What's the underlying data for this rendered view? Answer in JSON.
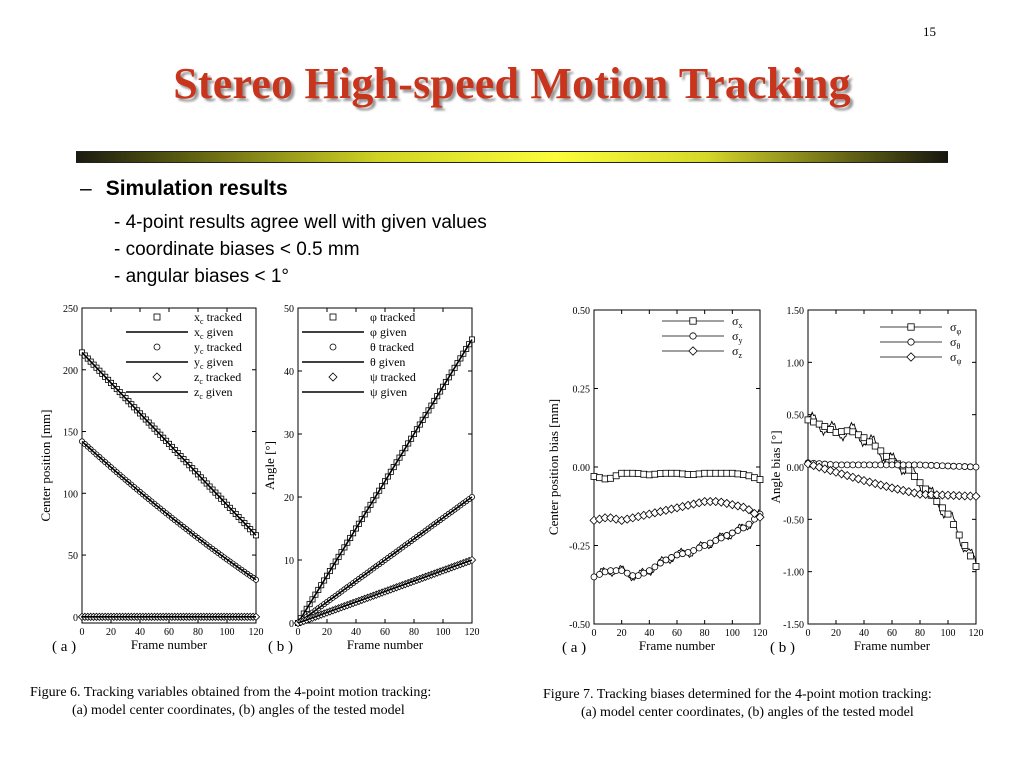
{
  "slide": {
    "page_number": "15",
    "title": "Stereo High-speed Motion Tracking",
    "bullet_dash": "–",
    "bullet": "Simulation results",
    "sub_points": [
      "- 4-point results agree well with given values",
      "- coordinate biases < 0.5 mm",
      "- angular biases < 1°"
    ],
    "figure6_caption": [
      "Figure 6.    Tracking variables obtained from the 4-point motion tracking:",
      "(a) model center coordinates, (b) angles of the tested model"
    ],
    "figure7_caption": [
      "Figure 7.    Tracking biases determined for the 4-point motion tracking:",
      "(a) model center coordinates, (b) angles of the tested model"
    ]
  },
  "chart_data": [
    {
      "id": "fig6a",
      "type": "line",
      "panel_label": "( a )",
      "xlabel": "Frame number",
      "ylabel": "Center position [mm]",
      "xlim": [
        0,
        120
      ],
      "ylim": [
        -5,
        250
      ],
      "xticks": [
        "0",
        "20",
        "40",
        "60",
        "80",
        "100",
        "120"
      ],
      "yticks": [
        "0",
        "50",
        "100",
        "150",
        "200",
        "250"
      ],
      "grid": false,
      "legend": "top-right",
      "series": [
        {
          "name": "xc tracked",
          "label": "x",
          "sub": "c",
          "suffix": " tracked",
          "marker": "square",
          "start": 214,
          "end": 66,
          "curve": 0
        },
        {
          "name": "xc given",
          "label": "x",
          "sub": "c",
          "suffix": " given",
          "marker": "line",
          "start": 214,
          "end": 66,
          "curve": 0
        },
        {
          "name": "yc tracked",
          "label": "y",
          "sub": "c",
          "suffix": " tracked",
          "marker": "circle",
          "start": 142,
          "end": 30,
          "curve": -4
        },
        {
          "name": "yc given",
          "label": "y",
          "sub": "c",
          "suffix": " given",
          "marker": "line",
          "start": 142,
          "end": 30,
          "curve": -4
        },
        {
          "name": "zc tracked",
          "label": "z",
          "sub": "c",
          "suffix": " tracked",
          "marker": "diamond",
          "start": 0,
          "end": 0,
          "curve": 0
        },
        {
          "name": "zc given",
          "label": "z",
          "sub": "c",
          "suffix": " given",
          "marker": "line",
          "start": 0,
          "end": 0,
          "curve": 0
        }
      ]
    },
    {
      "id": "fig6b",
      "type": "line",
      "panel_label": "( b )",
      "xlabel": "Frame number",
      "ylabel": "Angle [°]",
      "xlim": [
        0,
        120
      ],
      "ylim": [
        0,
        50
      ],
      "xticks": [
        "0",
        "20",
        "40",
        "60",
        "80",
        "100",
        "120"
      ],
      "yticks": [
        "0",
        "10",
        "20",
        "30",
        "40",
        "50"
      ],
      "grid": false,
      "legend": "top-left",
      "series": [
        {
          "name": "φ tracked",
          "label": "φ",
          "sub": "",
          "suffix": " tracked",
          "marker": "square",
          "start": 0,
          "end": 45,
          "curve": 0
        },
        {
          "name": "φ given",
          "label": "φ",
          "sub": "",
          "suffix": " given",
          "marker": "line",
          "start": 0,
          "end": 45,
          "curve": 0
        },
        {
          "name": "θ tracked",
          "label": "θ",
          "sub": "",
          "suffix": " tracked",
          "marker": "circle",
          "start": 0,
          "end": 20,
          "curve": 0
        },
        {
          "name": "θ given",
          "label": "θ",
          "sub": "",
          "suffix": " given",
          "marker": "line",
          "start": 0,
          "end": 20,
          "curve": 0
        },
        {
          "name": "ψ tracked",
          "label": "ψ",
          "sub": "",
          "suffix": " tracked",
          "marker": "diamond",
          "start": 0,
          "end": 10,
          "curve": 0
        },
        {
          "name": "ψ given",
          "label": "ψ",
          "sub": "",
          "suffix": " given",
          "marker": "line",
          "start": 0,
          "end": 10,
          "curve": 0
        }
      ]
    },
    {
      "id": "fig7a",
      "type": "line",
      "panel_label": "( a )",
      "xlabel": "Frame number",
      "ylabel": "Center position bias [mm]",
      "xlim": [
        0,
        120
      ],
      "ylim": [
        -0.5,
        0.5
      ],
      "xticks": [
        "0",
        "20",
        "40",
        "60",
        "80",
        "100",
        "120"
      ],
      "yticks": [
        "-0.50",
        "-0.25",
        "0.00",
        "0.25",
        "0.50"
      ],
      "grid": false,
      "legend": "top-right",
      "series": [
        {
          "name": "σx",
          "label": "σ",
          "sub": "x",
          "marker": "square",
          "points": [
            [
              0,
              -0.03
            ],
            [
              10,
              -0.04
            ],
            [
              20,
              -0.02
            ],
            [
              30,
              -0.02
            ],
            [
              40,
              -0.025
            ],
            [
              50,
              -0.02
            ],
            [
              60,
              -0.02
            ],
            [
              70,
              -0.025
            ],
            [
              80,
              -0.02
            ],
            [
              90,
              -0.02
            ],
            [
              100,
              -0.02
            ],
            [
              110,
              -0.025
            ],
            [
              120,
              -0.04
            ]
          ]
        },
        {
          "name": "σy",
          "label": "σ",
          "sub": "y",
          "marker": "circle",
          "points": [
            [
              0,
              -0.35
            ],
            [
              10,
              -0.33
            ],
            [
              20,
              -0.33
            ],
            [
              30,
              -0.35
            ],
            [
              40,
              -0.33
            ],
            [
              50,
              -0.3
            ],
            [
              60,
              -0.28
            ],
            [
              70,
              -0.27
            ],
            [
              80,
              -0.25
            ],
            [
              90,
              -0.23
            ],
            [
              100,
              -0.21
            ],
            [
              110,
              -0.19
            ],
            [
              120,
              -0.15
            ]
          ]
        },
        {
          "name": "σz",
          "label": "σ",
          "sub": "z",
          "marker": "diamond",
          "points": [
            [
              0,
              -0.17
            ],
            [
              10,
              -0.16
            ],
            [
              20,
              -0.17
            ],
            [
              30,
              -0.16
            ],
            [
              40,
              -0.15
            ],
            [
              50,
              -0.14
            ],
            [
              60,
              -0.13
            ],
            [
              70,
              -0.12
            ],
            [
              80,
              -0.11
            ],
            [
              90,
              -0.11
            ],
            [
              100,
              -0.12
            ],
            [
              110,
              -0.13
            ],
            [
              120,
              -0.16
            ]
          ]
        }
      ]
    },
    {
      "id": "fig7b",
      "type": "line",
      "panel_label": "( b )",
      "xlabel": "Frame number",
      "ylabel": "Angle bias [°]",
      "xlim": [
        0,
        120
      ],
      "ylim": [
        -1.5,
        1.5
      ],
      "xticks": [
        "0",
        "20",
        "40",
        "60",
        "80",
        "100",
        "120"
      ],
      "yticks": [
        "-1.50",
        "-1.00",
        "-0.50",
        "0.00",
        "0.50",
        "1.00",
        "1.50"
      ],
      "grid": false,
      "legend": "top-right",
      "series": [
        {
          "name": "σφ",
          "label": "σ",
          "sub": "φ",
          "marker": "square",
          "points": [
            [
              0,
              0.45
            ],
            [
              10,
              0.4
            ],
            [
              20,
              0.33
            ],
            [
              30,
              0.35
            ],
            [
              40,
              0.28
            ],
            [
              50,
              0.18
            ],
            [
              60,
              0.05
            ],
            [
              70,
              0.0
            ],
            [
              80,
              -0.15
            ],
            [
              90,
              -0.3
            ],
            [
              100,
              -0.45
            ],
            [
              110,
              -0.7
            ],
            [
              120,
              -0.95
            ]
          ]
        },
        {
          "name": "σθ",
          "label": "σ",
          "sub": "θ",
          "marker": "circle",
          "points": [
            [
              0,
              0.04
            ],
            [
              20,
              0.02
            ],
            [
              40,
              0.02
            ],
            [
              60,
              0.02
            ],
            [
              80,
              0.02
            ],
            [
              100,
              0.01
            ],
            [
              120,
              0.0
            ]
          ]
        },
        {
          "name": "σψ",
          "label": "σ",
          "sub": "ψ",
          "marker": "diamond",
          "points": [
            [
              0,
              0.03
            ],
            [
              20,
              -0.05
            ],
            [
              40,
              -0.13
            ],
            [
              60,
              -0.2
            ],
            [
              80,
              -0.26
            ],
            [
              100,
              -0.27
            ],
            [
              120,
              -0.28
            ]
          ]
        }
      ]
    }
  ]
}
